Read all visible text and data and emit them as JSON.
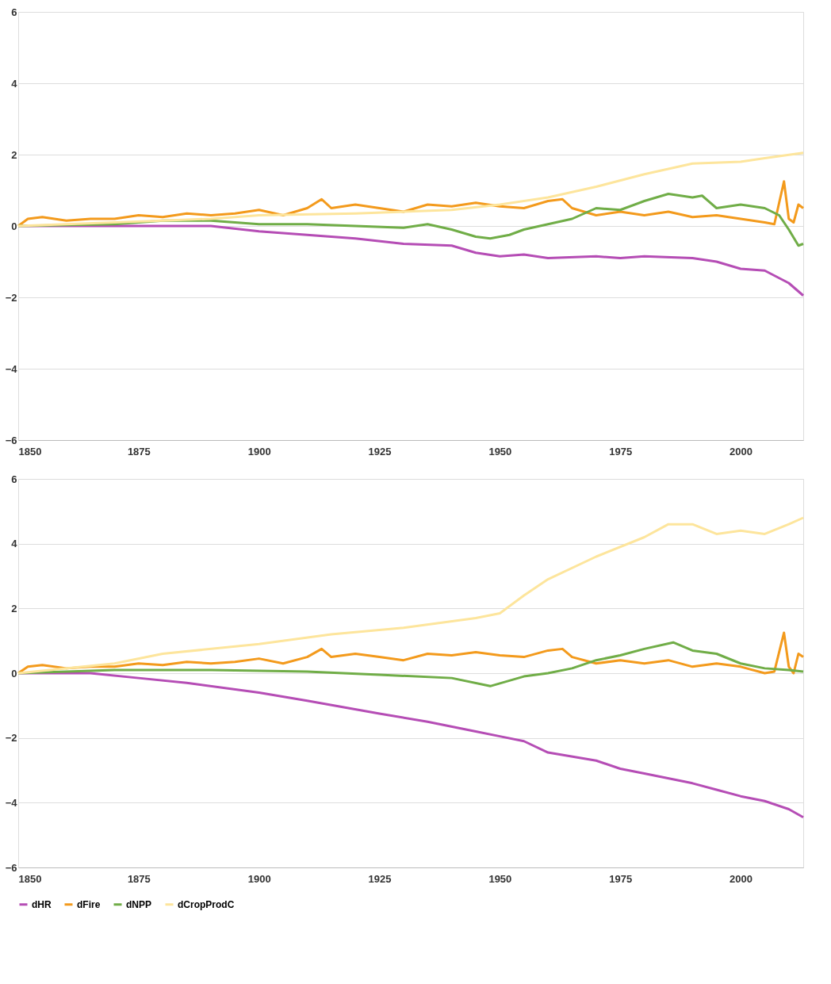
{
  "chart_data": [
    {
      "type": "line",
      "xlim": [
        1850,
        2013
      ],
      "xticks": [
        1850,
        1875,
        1900,
        1925,
        1950,
        1975,
        2000
      ],
      "ylim": [
        -6,
        6
      ],
      "yticks": [
        -6,
        -4,
        -2,
        0,
        2,
        4,
        6
      ],
      "grid": "y",
      "legend": "bottom",
      "series": [
        {
          "name": "dHR",
          "color": "#b54db5",
          "x": [
            1850,
            1880,
            1890,
            1900,
            1910,
            1920,
            1930,
            1940,
            1945,
            1950,
            1955,
            1960,
            1970,
            1975,
            1980,
            1990,
            1995,
            2000,
            2005,
            2010,
            2013
          ],
          "values": [
            0,
            0,
            0,
            -0.15,
            -0.25,
            -0.35,
            -0.5,
            -0.55,
            -0.75,
            -0.85,
            -0.8,
            -0.9,
            -0.85,
            -0.9,
            -0.85,
            -0.9,
            -1.0,
            -1.2,
            -1.25,
            -1.6,
            -1.95
          ]
        },
        {
          "name": "dFire",
          "color": "#f39a1c",
          "x": [
            1850,
            1852,
            1855,
            1860,
            1865,
            1870,
            1875,
            1880,
            1885,
            1890,
            1895,
            1900,
            1905,
            1910,
            1913,
            1915,
            1920,
            1925,
            1930,
            1935,
            1940,
            1945,
            1950,
            1955,
            1960,
            1963,
            1965,
            1970,
            1975,
            1980,
            1985,
            1990,
            1995,
            2000,
            2005,
            2007,
            2009,
            2010,
            2011,
            2012,
            2013
          ],
          "values": [
            0,
            0.2,
            0.25,
            0.15,
            0.2,
            0.2,
            0.3,
            0.25,
            0.35,
            0.3,
            0.35,
            0.45,
            0.3,
            0.5,
            0.75,
            0.5,
            0.6,
            0.5,
            0.4,
            0.6,
            0.55,
            0.65,
            0.55,
            0.5,
            0.7,
            0.75,
            0.5,
            0.3,
            0.4,
            0.3,
            0.4,
            0.25,
            0.3,
            0.2,
            0.1,
            0.05,
            1.25,
            0.2,
            0.1,
            0.6,
            0.5
          ]
        },
        {
          "name": "dNPP",
          "color": "#70ad47",
          "x": [
            1850,
            1870,
            1880,
            1890,
            1900,
            1910,
            1920,
            1930,
            1935,
            1940,
            1945,
            1948,
            1952,
            1955,
            1960,
            1965,
            1970,
            1975,
            1980,
            1985,
            1990,
            1992,
            1995,
            2000,
            2005,
            2008,
            2010,
            2012,
            2013
          ],
          "values": [
            0,
            0.05,
            0.15,
            0.15,
            0.05,
            0.05,
            0,
            -0.05,
            0.05,
            -0.1,
            -0.3,
            -0.35,
            -0.25,
            -0.1,
            0.05,
            0.2,
            0.5,
            0.45,
            0.7,
            0.9,
            0.8,
            0.85,
            0.5,
            0.6,
            0.5,
            0.3,
            -0.1,
            -0.55,
            -0.5
          ]
        },
        {
          "name": "dCropProdC",
          "color": "#fde59c",
          "x": [
            1850,
            1870,
            1890,
            1900,
            1920,
            1940,
            1950,
            1960,
            1970,
            1980,
            1990,
            2000,
            2005,
            2013
          ],
          "values": [
            0,
            0.1,
            0.2,
            0.3,
            0.35,
            0.45,
            0.6,
            0.8,
            1.1,
            1.45,
            1.75,
            1.8,
            1.9,
            2.05
          ]
        }
      ]
    },
    {
      "type": "line",
      "xlim": [
        1850,
        2013
      ],
      "xticks": [
        1850,
        1875,
        1900,
        1925,
        1950,
        1975,
        2000
      ],
      "ylim": [
        -6,
        6
      ],
      "yticks": [
        -6,
        -4,
        -2,
        0,
        2,
        4,
        6
      ],
      "grid": "y",
      "legend": "bottom",
      "series": [
        {
          "name": "dHR",
          "color": "#b54db5",
          "x": [
            1850,
            1865,
            1875,
            1885,
            1900,
            1910,
            1925,
            1935,
            1945,
            1950,
            1955,
            1960,
            1970,
            1975,
            1980,
            1990,
            1995,
            2000,
            2005,
            2010,
            2013
          ],
          "values": [
            0,
            0,
            -0.15,
            -0.3,
            -0.6,
            -0.85,
            -1.25,
            -1.5,
            -1.8,
            -1.95,
            -2.1,
            -2.45,
            -2.7,
            -2.95,
            -3.1,
            -3.4,
            -3.6,
            -3.8,
            -3.95,
            -4.2,
            -4.45
          ]
        },
        {
          "name": "dFire",
          "color": "#f39a1c",
          "x": [
            1850,
            1852,
            1855,
            1860,
            1865,
            1870,
            1875,
            1880,
            1885,
            1890,
            1895,
            1900,
            1905,
            1910,
            1913,
            1915,
            1920,
            1925,
            1930,
            1935,
            1940,
            1945,
            1950,
            1955,
            1960,
            1963,
            1965,
            1970,
            1975,
            1980,
            1985,
            1990,
            1995,
            2000,
            2005,
            2007,
            2009,
            2010,
            2011,
            2012,
            2013
          ],
          "values": [
            0,
            0.2,
            0.25,
            0.15,
            0.2,
            0.2,
            0.3,
            0.25,
            0.35,
            0.3,
            0.35,
            0.45,
            0.3,
            0.5,
            0.75,
            0.5,
            0.6,
            0.5,
            0.4,
            0.6,
            0.55,
            0.65,
            0.55,
            0.5,
            0.7,
            0.75,
            0.5,
            0.3,
            0.4,
            0.3,
            0.4,
            0.2,
            0.3,
            0.2,
            0.0,
            0.05,
            1.25,
            0.2,
            0.0,
            0.6,
            0.5
          ]
        },
        {
          "name": "dNPP",
          "color": "#70ad47",
          "x": [
            1850,
            1870,
            1890,
            1910,
            1925,
            1940,
            1948,
            1955,
            1960,
            1965,
            1970,
            1975,
            1980,
            1986,
            1990,
            1995,
            2000,
            2005,
            2010,
            2013
          ],
          "values": [
            0,
            0.1,
            0.1,
            0.05,
            -0.05,
            -0.15,
            -0.4,
            -0.1,
            0.0,
            0.15,
            0.4,
            0.55,
            0.75,
            0.95,
            0.7,
            0.6,
            0.3,
            0.15,
            0.1,
            0.05
          ]
        },
        {
          "name": "dCropProdC",
          "color": "#fde59c",
          "x": [
            1850,
            1870,
            1880,
            1900,
            1915,
            1930,
            1945,
            1950,
            1955,
            1960,
            1970,
            1980,
            1985,
            1990,
            1995,
            2000,
            2005,
            2010,
            2013
          ],
          "values": [
            0,
            0.3,
            0.6,
            0.9,
            1.2,
            1.4,
            1.7,
            1.85,
            2.4,
            2.9,
            3.6,
            4.2,
            4.6,
            4.6,
            4.3,
            4.4,
            4.3,
            4.6,
            4.8
          ]
        }
      ]
    }
  ]
}
